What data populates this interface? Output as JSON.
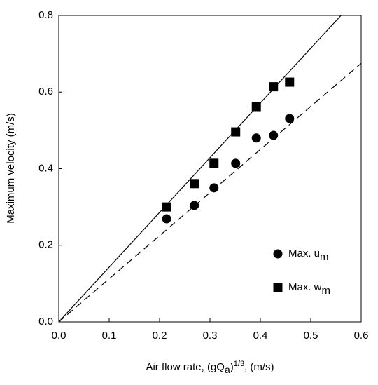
{
  "chart_data": {
    "type": "scatter",
    "ylabel": "Maximum velocity (m/s)",
    "xlabel_parts": [
      {
        "text": "Air flow rate, (gQ"
      },
      {
        "text": "a",
        "sub": true
      },
      {
        "text": ")"
      },
      {
        "text": "1/3",
        "sup": true
      },
      {
        "text": ", (m/s)"
      }
    ],
    "xlim": [
      0,
      0.6
    ],
    "ylim": [
      0,
      0.8
    ],
    "xticks": [
      {
        "value": 0,
        "label": "0.0"
      },
      0.1,
      0.2,
      0.3,
      0.4,
      0.5,
      0.6
    ],
    "yticks": [
      {
        "value": 0,
        "label": "0.0"
      },
      0.2,
      0.4,
      0.6,
      0.8
    ],
    "series": [
      {
        "name": "Max. u",
        "subscript": "m",
        "marker": "circle",
        "color": "#000000",
        "x": [
          0.214,
          0.269,
          0.308,
          0.351,
          0.392,
          0.426,
          0.458
        ],
        "values": [
          0.269,
          0.304,
          0.35,
          0.414,
          0.48,
          0.487,
          0.531
        ]
      },
      {
        "name": "Max. w",
        "subscript": "m",
        "marker": "square",
        "color": "#000000",
        "x": [
          0.214,
          0.269,
          0.308,
          0.351,
          0.392,
          0.426,
          0.458
        ],
        "values": [
          0.3,
          0.361,
          0.414,
          0.496,
          0.562,
          0.614,
          0.626
        ]
      }
    ],
    "lines": [
      {
        "style": "solid",
        "x": [
          0,
          0.56
        ],
        "y": [
          0,
          0.8
        ]
      },
      {
        "style": "dashed",
        "x": [
          0,
          0.6
        ],
        "y": [
          0,
          0.675
        ]
      }
    ]
  }
}
